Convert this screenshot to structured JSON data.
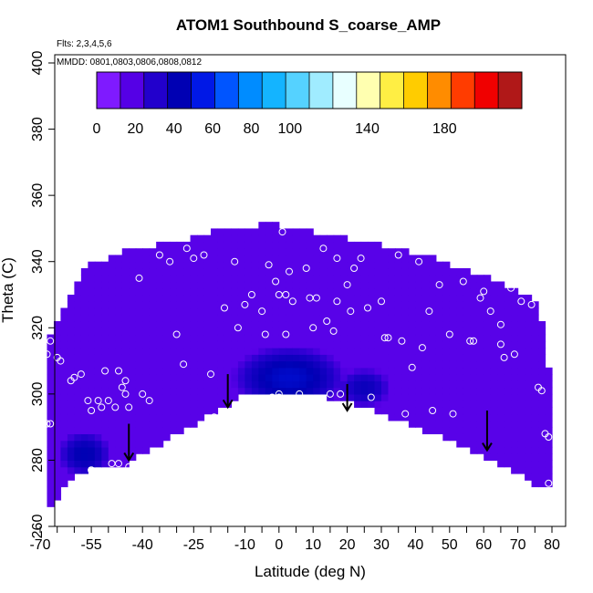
{
  "chart_data": {
    "type": "heatmap",
    "title": "ATOM1 Southbound S_coarse_AMP",
    "xlabel": "Latitude (deg N)",
    "ylabel": "Theta (C)",
    "xlim": [
      -70,
      80
    ],
    "ylim": [
      260,
      400
    ],
    "x_ticks_labeled": [
      -70,
      -55,
      -40,
      -25,
      -10,
      0,
      10,
      20,
      30,
      40,
      50,
      60,
      70,
      80
    ],
    "x_ticks_minor": [
      -65,
      -60,
      -50,
      -45,
      -35,
      -30,
      -20,
      -15,
      -5,
      5,
      15,
      25,
      35,
      45,
      55,
      65,
      75
    ],
    "y_ticks": [
      260,
      280,
      300,
      320,
      340,
      360,
      380,
      400
    ],
    "annotations": {
      "flights": "Flts: 2,3,4,5,6",
      "dates": "MMDD: 0801,0803,0806,0808,0812"
    },
    "colorbar": {
      "min": 0,
      "max": 220,
      "tick_labels": [
        0,
        20,
        40,
        60,
        80,
        100,
        140,
        180
      ],
      "colors": [
        "#7f1aff",
        "#5500e6",
        "#2200cc",
        "#0000b3",
        "#0018e6",
        "#0055ff",
        "#008cff",
        "#14b4ff",
        "#55d2ff",
        "#a0ecff",
        "#e8ffff",
        "#ffffb0",
        "#ffee44",
        "#ffcc00",
        "#ff8c00",
        "#ff3c00",
        "#f00000",
        "#b01818"
      ]
    },
    "field": {
      "upper_boundary": [
        [
          -68,
          316
        ],
        [
          -66,
          320
        ],
        [
          -64,
          324
        ],
        [
          -62,
          328
        ],
        [
          -60,
          332
        ],
        [
          -58,
          336
        ],
        [
          -55,
          339
        ],
        [
          -50,
          341
        ],
        [
          -45,
          343
        ],
        [
          -40,
          344
        ],
        [
          -35,
          345
        ],
        [
          -30,
          346
        ],
        [
          -25,
          347
        ],
        [
          -20,
          349
        ],
        [
          -15,
          350
        ],
        [
          -10,
          350
        ],
        [
          -5,
          351
        ],
        [
          0,
          351
        ],
        [
          5,
          350
        ],
        [
          10,
          349
        ],
        [
          15,
          348
        ],
        [
          20,
          347
        ],
        [
          25,
          346
        ],
        [
          30,
          345
        ],
        [
          35,
          344
        ],
        [
          40,
          342
        ],
        [
          45,
          341
        ],
        [
          50,
          339
        ],
        [
          55,
          337
        ],
        [
          60,
          336
        ],
        [
          65,
          334
        ],
        [
          70,
          331
        ],
        [
          75,
          328
        ],
        [
          78,
          318
        ],
        [
          79,
          308
        ],
        [
          80,
          288
        ]
      ],
      "lower_boundary": [
        [
          -68,
          266
        ],
        [
          -66,
          267
        ],
        [
          -64,
          270
        ],
        [
          -61,
          275
        ],
        [
          -57,
          277
        ],
        [
          -50,
          278
        ],
        [
          -44,
          279
        ],
        [
          -40,
          282
        ],
        [
          -35,
          285
        ],
        [
          -30,
          288
        ],
        [
          -25,
          291
        ],
        [
          -20,
          294
        ],
        [
          -15,
          297
        ],
        [
          -12,
          299
        ],
        [
          -8,
          300
        ],
        [
          -3,
          300
        ],
        [
          3,
          300
        ],
        [
          10,
          300
        ],
        [
          15,
          299
        ],
        [
          20,
          298
        ],
        [
          25,
          296
        ],
        [
          30,
          294
        ],
        [
          35,
          292
        ],
        [
          40,
          290
        ],
        [
          45,
          288
        ],
        [
          50,
          286
        ],
        [
          55,
          284
        ],
        [
          60,
          281
        ],
        [
          65,
          279
        ],
        [
          70,
          276
        ],
        [
          75,
          273
        ],
        [
          80,
          271
        ]
      ],
      "background_value": 12,
      "regions_of_high": [
        {
          "center_lat": 2,
          "center_theta": 305,
          "radius_lat": 17,
          "radius_theta": 10,
          "peak_value": 45
        },
        {
          "center_lat": -58,
          "center_theta": 282,
          "radius_lat": 8,
          "radius_theta": 7,
          "peak_value": 40
        },
        {
          "center_lat": 24,
          "center_theta": 302,
          "radius_lat": 8,
          "radius_theta": 6,
          "peak_value": 35
        }
      ]
    },
    "sample_points": [
      [
        -68,
        312
      ],
      [
        -67,
        316
      ],
      [
        -65,
        311
      ],
      [
        -64,
        310
      ],
      [
        -61,
        304
      ],
      [
        -60,
        305
      ],
      [
        -58,
        306
      ],
      [
        -56,
        298
      ],
      [
        -55,
        295
      ],
      [
        -53,
        298
      ],
      [
        -52,
        296
      ],
      [
        -51,
        307
      ],
      [
        -50,
        298
      ],
      [
        -48,
        296
      ],
      [
        -47,
        307
      ],
      [
        -46,
        302
      ],
      [
        -45,
        304
      ],
      [
        -45,
        300
      ],
      [
        -44,
        296
      ],
      [
        -41,
        335
      ],
      [
        -40,
        300
      ],
      [
        -38,
        298
      ],
      [
        -35,
        342
      ],
      [
        -32,
        340
      ],
      [
        -30,
        318
      ],
      [
        -28,
        309
      ],
      [
        -27,
        344
      ],
      [
        -25,
        341
      ],
      [
        -22,
        342
      ],
      [
        -20,
        306
      ],
      [
        -19,
        293
      ],
      [
        -16,
        326
      ],
      [
        -13,
        340
      ],
      [
        -12,
        320
      ],
      [
        -10,
        327
      ],
      [
        -8,
        330
      ],
      [
        -5,
        325
      ],
      [
        -4,
        318
      ],
      [
        -3,
        339
      ],
      [
        -1,
        334
      ],
      [
        0,
        330
      ],
      [
        0,
        300
      ],
      [
        0,
        299
      ],
      [
        1,
        349
      ],
      [
        2,
        330
      ],
      [
        2,
        318
      ],
      [
        3,
        337
      ],
      [
        4,
        328
      ],
      [
        6,
        300
      ],
      [
        8,
        338
      ],
      [
        9,
        329
      ],
      [
        10,
        320
      ],
      [
        11,
        329
      ],
      [
        13,
        344
      ],
      [
        14,
        322
      ],
      [
        15,
        300
      ],
      [
        16,
        319
      ],
      [
        17,
        328
      ],
      [
        17,
        341
      ],
      [
        18,
        300
      ],
      [
        20,
        333
      ],
      [
        21,
        325
      ],
      [
        22,
        338
      ],
      [
        24,
        341
      ],
      [
        26,
        326
      ],
      [
        27,
        299
      ],
      [
        30,
        328
      ],
      [
        31,
        317
      ],
      [
        32,
        317
      ],
      [
        35,
        342
      ],
      [
        36,
        316
      ],
      [
        37,
        294
      ],
      [
        39,
        308
      ],
      [
        41,
        340
      ],
      [
        42,
        314
      ],
      [
        44,
        325
      ],
      [
        45,
        295
      ],
      [
        47,
        333
      ],
      [
        50,
        318
      ],
      [
        51,
        294
      ],
      [
        54,
        334
      ],
      [
        56,
        316
      ],
      [
        57,
        316
      ],
      [
        59,
        329
      ],
      [
        60,
        331
      ],
      [
        62,
        325
      ],
      [
        65,
        321
      ],
      [
        65,
        315
      ],
      [
        66,
        311
      ],
      [
        68,
        332
      ],
      [
        69,
        312
      ],
      [
        71,
        328
      ],
      [
        74,
        327
      ],
      [
        76,
        302
      ],
      [
        77,
        301
      ],
      [
        78,
        288
      ],
      [
        79,
        287
      ],
      [
        79,
        273
      ],
      [
        -44,
        278
      ],
      [
        -55,
        277
      ],
      [
        -49,
        279
      ],
      [
        -47,
        279
      ],
      [
        -68,
        291
      ],
      [
        -67,
        291
      ],
      [
        -2,
        299
      ]
    ],
    "arrows": [
      {
        "x": -44,
        "y_from": 291,
        "y_to": 280
      },
      {
        "x": -15,
        "y_from": 306,
        "y_to": 296
      },
      {
        "x": 20,
        "y_from": 303,
        "y_to": 295
      },
      {
        "x": 61,
        "y_from": 295,
        "y_to": 283
      }
    ]
  }
}
